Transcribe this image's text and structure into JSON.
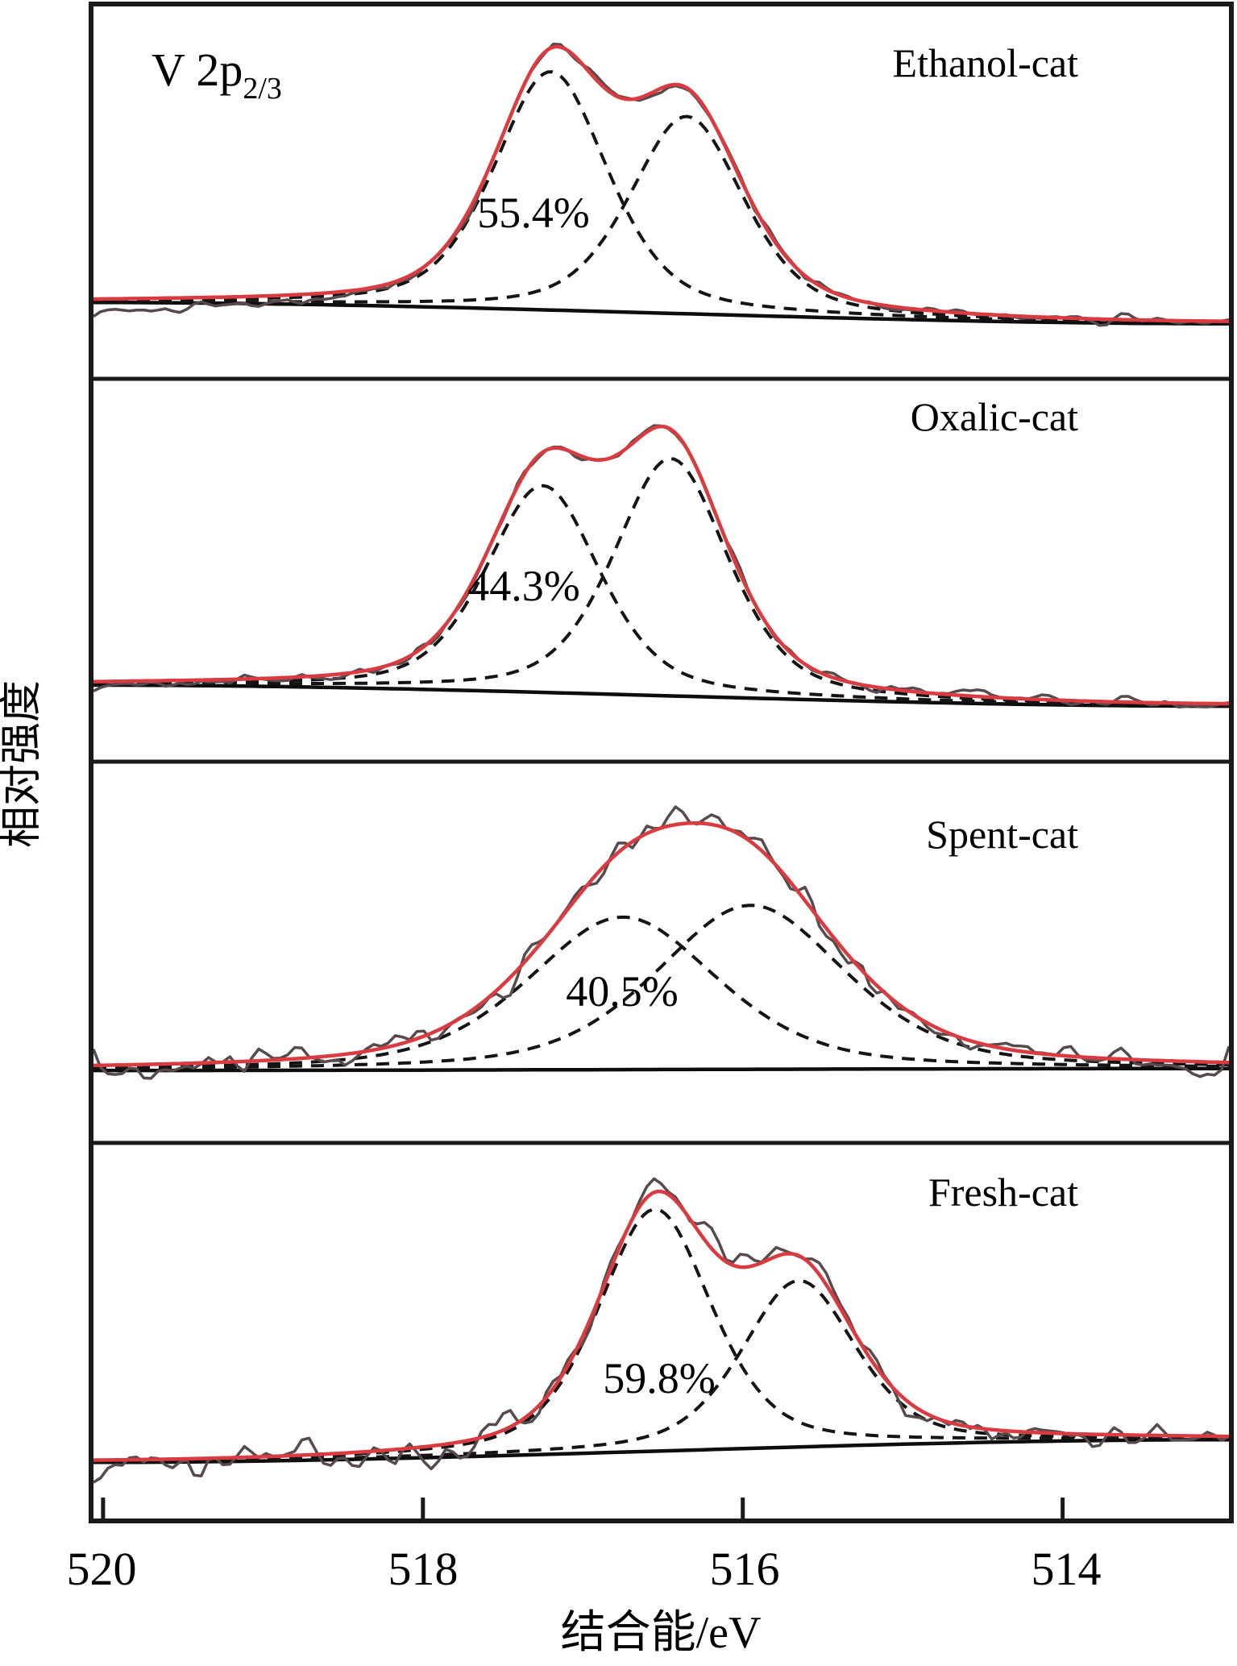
{
  "figure": {
    "kind": "XPS deconvolution spectra, 4 stacked panels sharing one binding-energy axis",
    "region_label": {
      "main": "V 2p",
      "sub": "2/3"
    }
  },
  "chart_data": {
    "type": "line",
    "title": "V 2p2/3 XPS fitted spectra",
    "x_axis": {
      "label": "结合能/eV",
      "tick_labels": [
        "520",
        "518",
        "516",
        "514"
      ],
      "tick_values": [
        520,
        518,
        516,
        514
      ],
      "range_eV": [
        520.06,
        512.96
      ],
      "direction": "decreasing-left-to-right",
      "grid": false
    },
    "y_axis": {
      "label": "相对强度",
      "ticks": "none (relative intensity, arbitrary units)"
    },
    "legend_position": "none",
    "series_roles": [
      "raw-data (noisy gray)",
      "fit-envelope (red)",
      "two fitted components (black dashed)",
      "background (black solid)"
    ],
    "colors": {
      "fit": "#d93b40",
      "raw": "#564a4a",
      "component": "#141414",
      "baseline": "#0d0d0d",
      "frame": "#1a1a1a",
      "text": "#000000"
    },
    "panels": [
      {
        "name": "Ethanol-cat",
        "pct_label": "55.4%",
        "peaks": [
          {
            "center_eV": 517.2,
            "height": 0.64,
            "hwhm_eV": 0.42
          },
          {
            "center_eV": 516.35,
            "height": 0.53,
            "hwhm_eV": 0.42
          }
        ],
        "background": [
          0.205,
          0.148
        ],
        "noise_amp": 0.02,
        "noise_left_boost": 0.0,
        "raw_left_bias": -0.03,
        "seed": 101
      },
      {
        "name": "Oxalic-cat",
        "pct_label": "44.3%",
        "peaks": [
          {
            "center_eV": 517.25,
            "height": 0.54,
            "hwhm_eV": 0.42
          },
          {
            "center_eV": 516.45,
            "height": 0.62,
            "hwhm_eV": 0.42
          }
        ],
        "background": [
          0.2,
          0.145
        ],
        "noise_amp": 0.02,
        "noise_left_boost": 0.0,
        "raw_left_bias": -0.012,
        "seed": 205
      },
      {
        "name": "Spent-cat",
        "pct_label": "40.5%",
        "peaks": [
          {
            "center_eV": 516.75,
            "height": 0.4,
            "hwhm_eV": 0.7
          },
          {
            "center_eV": 515.95,
            "height": 0.43,
            "hwhm_eV": 0.7
          }
        ],
        "background": [
          0.19,
          0.195
        ],
        "noise_amp": 0.042,
        "noise_left_boost": 0.2,
        "raw_left_bias": -0.01,
        "seed": 303
      },
      {
        "name": "Fresh-cat",
        "pct_label": "59.8%",
        "peaks": [
          {
            "center_eV": 516.55,
            "height": 0.64,
            "hwhm_eV": 0.42
          },
          {
            "center_eV": 515.65,
            "height": 0.44,
            "hwhm_eV": 0.42
          }
        ],
        "background": [
          0.155,
          0.215
        ],
        "noise_amp": 0.05,
        "noise_left_boost": 0.9,
        "raw_left_bias": -0.02,
        "seed": 404
      }
    ]
  }
}
